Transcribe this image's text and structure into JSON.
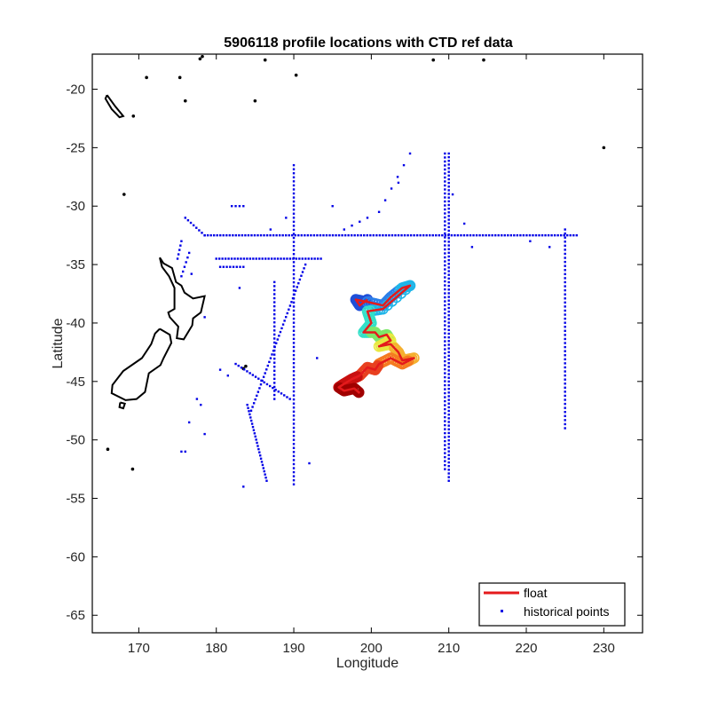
{
  "chart_data": {
    "type": "scatter",
    "title": "5906118 profile locations with CTD ref data",
    "xlabel": "Longitude",
    "ylabel": "Latitude",
    "xlim": [
      164,
      235
    ],
    "ylim": [
      -66.5,
      -17
    ],
    "xticks": [
      170,
      180,
      190,
      200,
      210,
      220,
      230
    ],
    "yticks": [
      -65,
      -60,
      -55,
      -50,
      -45,
      -40,
      -35,
      -30,
      -25,
      -20
    ],
    "grid": false,
    "legend_position": "bottom-right",
    "colors": {
      "float": "#e41a1c",
      "historical": "#0000e6",
      "coast": "#000000",
      "axes": "#000000"
    },
    "series": [
      {
        "name": "float",
        "kind": "line",
        "color": "#e41a1c",
        "points": [
          [
            199.5,
            -38.0
          ],
          [
            198.5,
            -38.5
          ],
          [
            198.0,
            -38.0
          ],
          [
            199.5,
            -38.2
          ],
          [
            201.5,
            -38.5
          ],
          [
            202.5,
            -37.8
          ],
          [
            204.0,
            -37.0
          ],
          [
            205.0,
            -36.8
          ],
          [
            201.5,
            -38.8
          ],
          [
            199.5,
            -39.0
          ],
          [
            200.0,
            -40.0
          ],
          [
            199.0,
            -40.8
          ],
          [
            200.5,
            -40.8
          ],
          [
            201.0,
            -41.2
          ],
          [
            202.0,
            -41.0
          ],
          [
            202.5,
            -41.5
          ],
          [
            201.0,
            -42.0
          ],
          [
            202.5,
            -41.8
          ],
          [
            203.5,
            -42.5
          ],
          [
            204.0,
            -43.2
          ],
          [
            205.5,
            -43.0
          ],
          [
            204.0,
            -43.5
          ],
          [
            202.5,
            -43.0
          ],
          [
            201.0,
            -43.5
          ],
          [
            200.5,
            -44.0
          ],
          [
            199.5,
            -43.8
          ],
          [
            198.5,
            -44.5
          ],
          [
            197.5,
            -44.8
          ],
          [
            196.5,
            -45.2
          ],
          [
            195.8,
            -45.5
          ],
          [
            196.5,
            -45.8
          ],
          [
            197.8,
            -45.6
          ],
          [
            198.5,
            -46.0
          ]
        ]
      },
      {
        "name": "historical points",
        "kind": "points",
        "color": "#0000e6",
        "segments": [
          {
            "from": [
              178.5,
              -32.5
            ],
            "to": [
              226.5,
              -32.5
            ],
            "n": 120
          },
          {
            "from": [
              190,
              -26.5
            ],
            "to": [
              190,
              -53.8
            ],
            "n": 80
          },
          {
            "from": [
              210,
              -25.5
            ],
            "to": [
              210,
              -53.5
            ],
            "n": 90
          },
          {
            "from": [
              209.5,
              -25.5
            ],
            "to": [
              209.5,
              -52.5
            ],
            "n": 80
          },
          {
            "from": [
              225,
              -32.0
            ],
            "to": [
              225,
              -49.0
            ],
            "n": 50
          },
          {
            "from": [
              180,
              -34.5
            ],
            "to": [
              193.5,
              -34.5
            ],
            "n": 35
          },
          {
            "from": [
              180.5,
              -35.2
            ],
            "to": [
              183.5,
              -35.2
            ],
            "n": 8
          },
          {
            "from": [
              176,
              -31.0
            ],
            "to": [
              178.5,
              -32.5
            ],
            "n": 8
          },
          {
            "from": [
              191.5,
              -35.0
            ],
            "to": [
              184.5,
              -47.5
            ],
            "n": 40
          },
          {
            "from": [
              187.5,
              -36.5
            ],
            "to": [
              187.5,
              -46.5
            ],
            "n": 30
          },
          {
            "from": [
              184.0,
              -47.0
            ],
            "to": [
              186.5,
              -53.5
            ],
            "n": 25
          },
          {
            "from": [
              182.5,
              -43.5
            ],
            "to": [
              189.5,
              -46.5
            ],
            "n": 20
          },
          {
            "from": [
              175.5,
              -36.0
            ],
            "to": [
              176.5,
              -34.0
            ],
            "n": 6
          },
          {
            "from": [
              175.0,
              -34.5
            ],
            "to": [
              175.5,
              -33.0
            ],
            "n": 5
          },
          {
            "from": [
              182.0,
              -30.0
            ],
            "to": [
              183.5,
              -30.0
            ],
            "n": 4
          },
          {
            "from": [
              201.0,
              -30.5
            ],
            "to": [
              205.0,
              -25.5
            ],
            "n": 6
          },
          {
            "from": [
              196.5,
              -32.0
            ],
            "to": [
              199.5,
              -31.0
            ],
            "n": 4
          }
        ],
        "extra": [
          [
            178.5,
            -39.5
          ],
          [
            177.5,
            -46.5
          ],
          [
            178.0,
            -47.0
          ],
          [
            176.5,
            -48.5
          ],
          [
            175.5,
            -51.0
          ],
          [
            176.0,
            -51.0
          ],
          [
            178.5,
            -49.5
          ],
          [
            180.5,
            -44.0
          ],
          [
            181.5,
            -44.5
          ],
          [
            183.5,
            -54.0
          ],
          [
            192.0,
            -52.0
          ],
          [
            193.0,
            -43.0
          ],
          [
            183.0,
            -37.0
          ],
          [
            176.8,
            -35.8
          ],
          [
            189.0,
            -31.0
          ],
          [
            187.0,
            -32.0
          ],
          [
            210.5,
            -29.0
          ],
          [
            212.0,
            -31.5
          ],
          [
            213.0,
            -33.5
          ],
          [
            195.0,
            -30.0
          ],
          [
            203.5,
            -28.0
          ],
          [
            220.5,
            -33.0
          ],
          [
            223.0,
            -33.5
          ]
        ]
      }
    ],
    "float_profile_colors": [
      "#1f4fd8",
      "#2c7fe8",
      "#1fb5e8",
      "#33e0c8",
      "#7de86a",
      "#e8e840",
      "#f5b030",
      "#f57a20",
      "#e84020",
      "#c81010",
      "#a00000"
    ],
    "legend": [
      "float",
      "historical points"
    ]
  }
}
